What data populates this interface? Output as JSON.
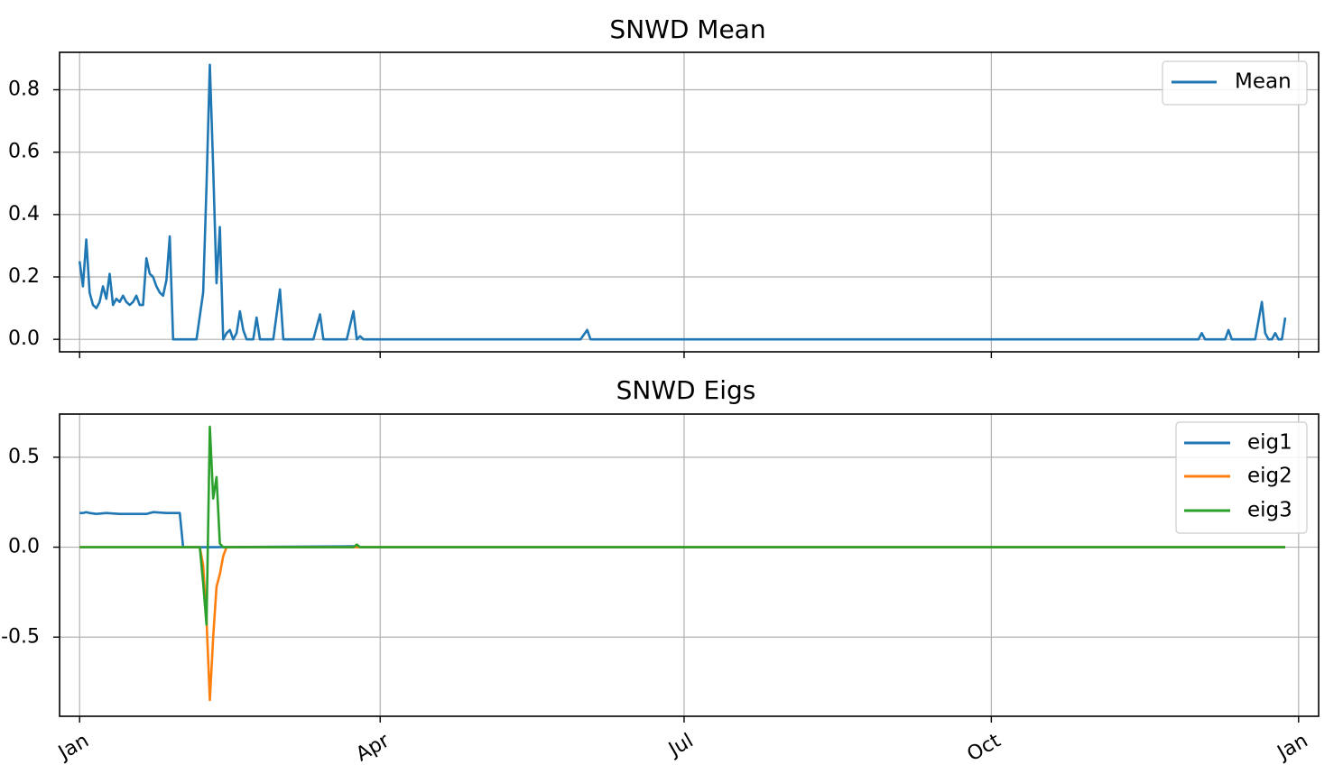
{
  "chart_data": [
    {
      "type": "line",
      "title": "SNWD Mean",
      "xlabel": "",
      "ylabel": "",
      "x_ticks": [
        "Jan",
        "Apr",
        "Jul",
        "Oct",
        "Jan"
      ],
      "y_ticks": [
        "0.0",
        "0.2",
        "0.4",
        "0.6",
        "0.8"
      ],
      "xlim_days": [
        -6,
        371
      ],
      "ylim": [
        -0.04,
        0.92
      ],
      "grid": true,
      "legend_position": "upper right",
      "series": [
        {
          "name": "Mean",
          "color": "#1f77b4",
          "points": [
            [
              0,
              0.25
            ],
            [
              1,
              0.17
            ],
            [
              2,
              0.32
            ],
            [
              3,
              0.15
            ],
            [
              4,
              0.11
            ],
            [
              5,
              0.1
            ],
            [
              6,
              0.12
            ],
            [
              7,
              0.17
            ],
            [
              8,
              0.13
            ],
            [
              9,
              0.21
            ],
            [
              10,
              0.11
            ],
            [
              11,
              0.13
            ],
            [
              12,
              0.12
            ],
            [
              13,
              0.14
            ],
            [
              14,
              0.12
            ],
            [
              15,
              0.11
            ],
            [
              16,
              0.12
            ],
            [
              17,
              0.14
            ],
            [
              18,
              0.11
            ],
            [
              19,
              0.11
            ],
            [
              20,
              0.26
            ],
            [
              21,
              0.21
            ],
            [
              22,
              0.2
            ],
            [
              23,
              0.17
            ],
            [
              24,
              0.15
            ],
            [
              25,
              0.14
            ],
            [
              26,
              0.19
            ],
            [
              27,
              0.33
            ],
            [
              28,
              0.0
            ],
            [
              30,
              0.0
            ],
            [
              35,
              0.0
            ],
            [
              37,
              0.15
            ],
            [
              38,
              0.49
            ],
            [
              39,
              0.88
            ],
            [
              40,
              0.55
            ],
            [
              41,
              0.18
            ],
            [
              42,
              0.36
            ],
            [
              43,
              0.0
            ],
            [
              44,
              0.02
            ],
            [
              45,
              0.03
            ],
            [
              46,
              0.0
            ],
            [
              47,
              0.02
            ],
            [
              48,
              0.09
            ],
            [
              49,
              0.03
            ],
            [
              50,
              0.0
            ],
            [
              52,
              0.0
            ],
            [
              53,
              0.07
            ],
            [
              54,
              0.0
            ],
            [
              58,
              0.0
            ],
            [
              60,
              0.16
            ],
            [
              61,
              0.0
            ],
            [
              70,
              0.0
            ],
            [
              72,
              0.08
            ],
            [
              73,
              0.0
            ],
            [
              80,
              0.0
            ],
            [
              82,
              0.09
            ],
            [
              83,
              0.0
            ],
            [
              84,
              0.01
            ],
            [
              85,
              0.0
            ],
            [
              150,
              0.0
            ],
            [
              152,
              0.03
            ],
            [
              153,
              0.0
            ],
            [
              335,
              0.0
            ],
            [
              336,
              0.02
            ],
            [
              337,
              0.0
            ],
            [
              343,
              0.0
            ],
            [
              344,
              0.03
            ],
            [
              345,
              0.0
            ],
            [
              352,
              0.0
            ],
            [
              354,
              0.12
            ],
            [
              355,
              0.02
            ],
            [
              356,
              0.0
            ],
            [
              357,
              0.0
            ],
            [
              358,
              0.02
            ],
            [
              359,
              0.0
            ],
            [
              360,
              0.0
            ],
            [
              361,
              0.07
            ]
          ]
        }
      ]
    },
    {
      "type": "line",
      "title": "SNWD Eigs",
      "xlabel": "",
      "ylabel": "",
      "x_ticks": [
        "Jan",
        "Apr",
        "Jul",
        "Oct",
        "Jan"
      ],
      "y_ticks": [
        "0.5",
        "0.0",
        "-0.5"
      ],
      "xlim_days": [
        -6,
        371
      ],
      "ylim": [
        -0.94,
        0.74
      ],
      "grid": true,
      "legend_position": "upper right",
      "series": [
        {
          "name": "eig1",
          "color": "#1f77b4",
          "points": [
            [
              0,
              0.19
            ],
            [
              1,
              0.19
            ],
            [
              2,
              0.195
            ],
            [
              3,
              0.19
            ],
            [
              5,
              0.185
            ],
            [
              8,
              0.19
            ],
            [
              12,
              0.185
            ],
            [
              20,
              0.185
            ],
            [
              22,
              0.195
            ],
            [
              26,
              0.19
            ],
            [
              30,
              0.19
            ],
            [
              31,
              0.0
            ],
            [
              40,
              0.0
            ],
            [
              82,
              0.005
            ],
            [
              83,
              0.0
            ],
            [
              361,
              0.0
            ]
          ]
        },
        {
          "name": "eig2",
          "color": "#ff7f0e",
          "points": [
            [
              0,
              0.0
            ],
            [
              36,
              0.0
            ],
            [
              37,
              -0.1
            ],
            [
              38,
              -0.4
            ],
            [
              39,
              -0.85
            ],
            [
              40,
              -0.5
            ],
            [
              41,
              -0.22
            ],
            [
              42,
              -0.15
            ],
            [
              43,
              -0.05
            ],
            [
              44,
              0.0
            ],
            [
              361,
              0.0
            ]
          ]
        },
        {
          "name": "eig3",
          "color": "#2ca02c",
          "points": [
            [
              0,
              0.0
            ],
            [
              36,
              0.0
            ],
            [
              37,
              -0.2
            ],
            [
              38,
              -0.43
            ],
            [
              39,
              0.67
            ],
            [
              40,
              0.27
            ],
            [
              41,
              0.39
            ],
            [
              42,
              0.02
            ],
            [
              43,
              0.0
            ],
            [
              82,
              0.0
            ],
            [
              83,
              0.015
            ],
            [
              84,
              0.0
            ],
            [
              361,
              0.0
            ]
          ]
        }
      ]
    }
  ]
}
